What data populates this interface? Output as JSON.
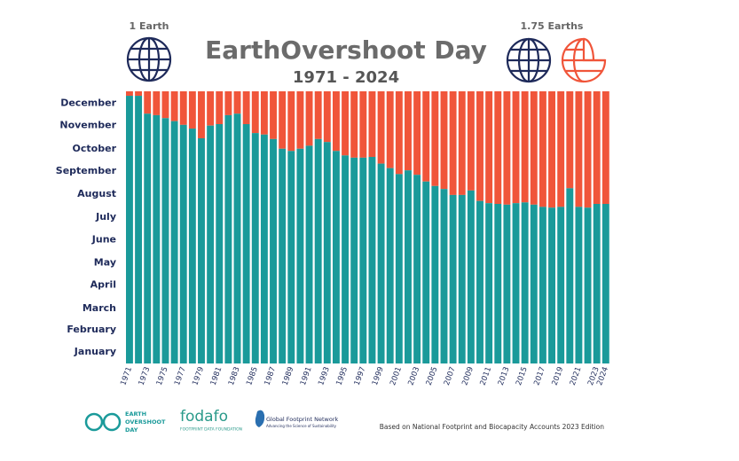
{
  "chart_data": {
    "type": "bar",
    "title": "EarthOvershoot Day",
    "subtitle": "1971 - 2024",
    "left_label": "1 Earth",
    "right_label": "1.75 Earths",
    "source": "Based on National Footprint and Biocapacity Accounts 2023 Edition",
    "categories": [
      "1971",
      null,
      "1973",
      null,
      "1975",
      null,
      "1977",
      null,
      "1979",
      null,
      "1981",
      null,
      "1983",
      null,
      "1985",
      null,
      "1987",
      null,
      "1989",
      null,
      "1991",
      null,
      "1993",
      null,
      "1995",
      null,
      "1997",
      null,
      "1999",
      null,
      "2001",
      null,
      "2003",
      null,
      "2005",
      null,
      "2007",
      null,
      "2009",
      null,
      "2011",
      null,
      "2013",
      null,
      "2015",
      null,
      "2017",
      null,
      "2019",
      null,
      "2021",
      null,
      "2023",
      "2024"
    ],
    "values": [
      359,
      359,
      335,
      333,
      329,
      325,
      320,
      315,
      302,
      319,
      321,
      333,
      335,
      321,
      309,
      307,
      301,
      288,
      285,
      288,
      292,
      301,
      297,
      285,
      279,
      276,
      276,
      277,
      268,
      262,
      254,
      259,
      253,
      244,
      238,
      234,
      226,
      226,
      232,
      218,
      215,
      214,
      213,
      215,
      216,
      213,
      210,
      209,
      210,
      235,
      210,
      209,
      214,
      214
    ],
    "color": "#1a9a9a",
    "remainder_color": "#f0553a",
    "ylim": [
      0,
      365
    ],
    "yticks": [
      {
        "value": 15.5,
        "label": "January"
      },
      {
        "value": 45,
        "label": "February"
      },
      {
        "value": 74,
        "label": "March"
      },
      {
        "value": 105,
        "label": "April"
      },
      {
        "value": 135,
        "label": "May"
      },
      {
        "value": 166,
        "label": "June"
      },
      {
        "value": 196,
        "label": "July"
      },
      {
        "value": 227,
        "label": "August"
      },
      {
        "value": 258,
        "label": "September"
      },
      {
        "value": 288,
        "label": "October"
      },
      {
        "value": 319,
        "label": "November"
      },
      {
        "value": 349,
        "label": "December"
      }
    ],
    "grid": false
  },
  "logos": {
    "earth_overshoot_day": [
      "EARTH",
      "OVERSHOOT",
      "DAY"
    ],
    "fodafo": "fodafo",
    "fodafo_sub": "FOOTPRINT DATA FOUNDATION",
    "gfn": "Global Footprint Network",
    "gfn_sub": "Advancing the Science of Sustainability"
  }
}
